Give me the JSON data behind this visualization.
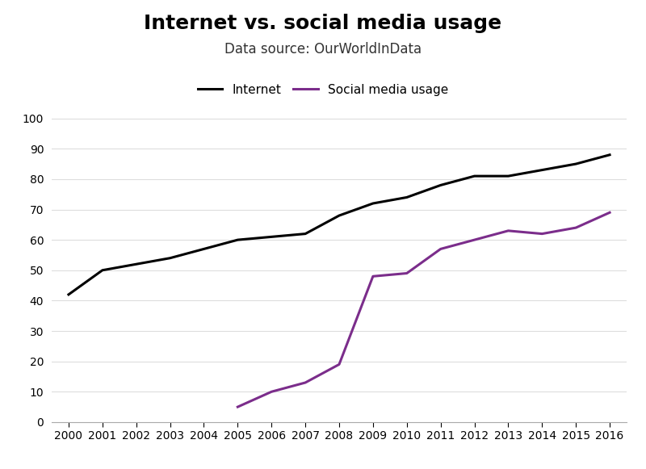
{
  "title": "Internet vs. social media usage",
  "subtitle": "Data source: OurWorldInData",
  "internet": {
    "label": "Internet",
    "color": "#000000",
    "x": [
      2000,
      2001,
      2002,
      2003,
      2004,
      2005,
      2006,
      2007,
      2008,
      2009,
      2010,
      2011,
      2012,
      2013,
      2014,
      2015,
      2016
    ],
    "y": [
      42,
      50,
      52,
      54,
      57,
      60,
      61,
      62,
      68,
      72,
      74,
      78,
      81,
      81,
      83,
      85,
      88
    ]
  },
  "social": {
    "label": "Social media usage",
    "color": "#7b2d8b",
    "x": [
      2005,
      2006,
      2007,
      2008,
      2009,
      2010,
      2011,
      2012,
      2013,
      2014,
      2015,
      2016
    ],
    "y": [
      5,
      10,
      13,
      19,
      48,
      49,
      57,
      60,
      63,
      62,
      64,
      69
    ]
  },
  "xlim": [
    1999.5,
    2016.5
  ],
  "ylim": [
    0,
    105
  ],
  "xtick_labels": [
    "2000",
    "2001",
    "2002",
    "2003",
    "2004",
    "2005",
    "2006",
    "2007",
    "2008",
    "2009",
    "2010",
    "2011",
    "2012",
    "2013",
    "2014",
    "2015",
    "2016"
  ],
  "ytick_values": [
    0,
    10,
    20,
    30,
    40,
    50,
    60,
    70,
    80,
    90,
    100
  ],
  "background_color": "#ffffff",
  "title_fontsize": 18,
  "subtitle_fontsize": 12,
  "legend_fontsize": 11,
  "tick_fontsize": 10,
  "line_width": 2.2
}
